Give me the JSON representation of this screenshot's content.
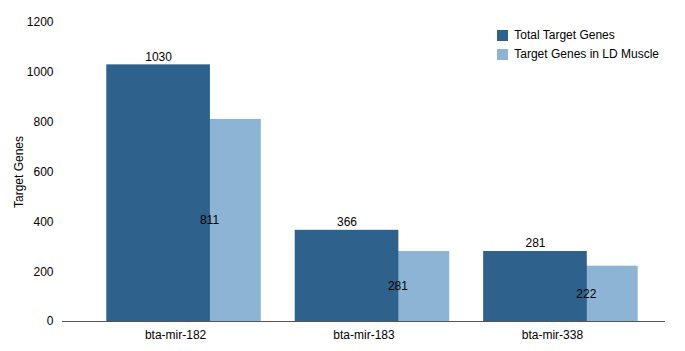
{
  "chart_data": {
    "type": "bar",
    "categories": [
      "bta-mir-182",
      "bta-mir-183",
      "bta-mir-338"
    ],
    "series": [
      {
        "name": "Total Target Genes",
        "color": "#2E618C",
        "values": [
          1030,
          366,
          281
        ]
      },
      {
        "name": "Target Genes in LD Muscle",
        "color": "#8DB4D4",
        "values": [
          811,
          281,
          222
        ]
      }
    ],
    "ylabel": "Target Genes",
    "ylim": [
      0,
      1200
    ],
    "yticks": [
      0,
      200,
      400,
      600,
      800,
      1000,
      1200
    ],
    "grid": false,
    "legend": "upper right",
    "data_labels": true
  }
}
